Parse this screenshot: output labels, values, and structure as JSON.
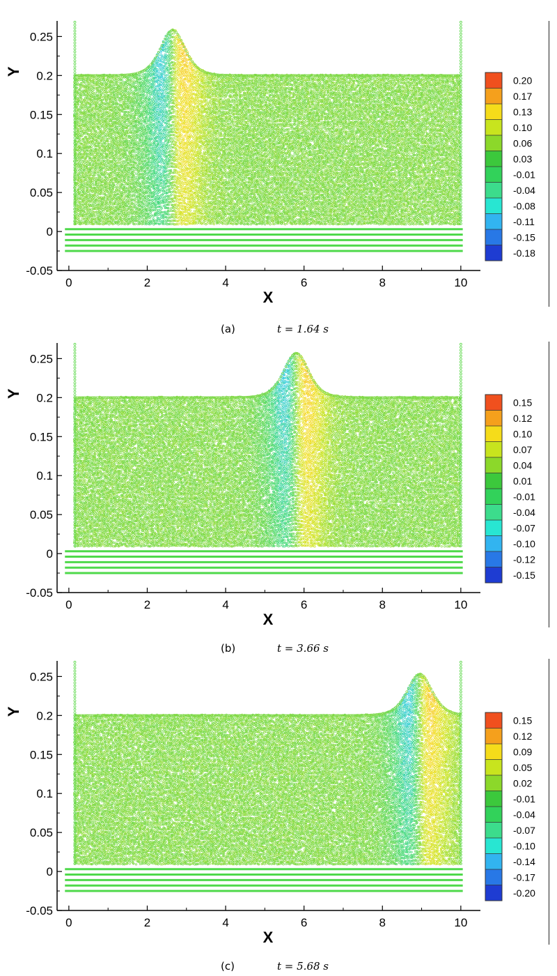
{
  "chart_data": [
    {
      "type": "scatter",
      "subtype": "SPH particle plot with contour legend",
      "panel_label": "(a)",
      "time_label": "t = 1.64 s",
      "xlabel": "X",
      "ylabel": "Y",
      "xlim": [
        -0.3,
        10.5
      ],
      "ylim": [
        -0.05,
        0.27
      ],
      "xticks": [
        0,
        2,
        4,
        6,
        8,
        10
      ],
      "yticks": [
        -0.05,
        0,
        0.05,
        0.1,
        0.15,
        0.2,
        0.25
      ],
      "ytick_labels": [
        "-0.05",
        "0",
        "0.05",
        "0.1",
        "0.15",
        "0.2",
        "0.25"
      ],
      "grid": false,
      "legend_placement": "right",
      "domain": {
        "x_left": 0.1,
        "x_right": 10,
        "water_level": 0.2,
        "bed": 0.01
      },
      "wave": {
        "crest_x": 2.65,
        "crest_y": 0.258,
        "width": 0.42
      },
      "wall_x": [
        0.1,
        10
      ],
      "bed_lines_y": [
        0.003,
        -0.004,
        -0.011,
        -0.018,
        -0.025
      ],
      "legend_levels": [
        "0.20",
        "0.17",
        "0.13",
        "0.10",
        "0.06",
        "0.03",
        "-0.01",
        "-0.04",
        "-0.08",
        "-0.11",
        "-0.15",
        "-0.18"
      ],
      "legend_colors": [
        "#f0501e",
        "#f5a01c",
        "#f5dc1a",
        "#c8e41e",
        "#8cd82a",
        "#3cc83c",
        "#32d25a",
        "#3cdc8c",
        "#28e6d2",
        "#32b4f0",
        "#2878e6",
        "#1e3cd2"
      ]
    },
    {
      "type": "scatter",
      "subtype": "SPH particle plot with contour legend",
      "panel_label": "(b)",
      "time_label": "t = 3.66 s",
      "xlabel": "X",
      "ylabel": "Y",
      "xlim": [
        -0.3,
        10.5
      ],
      "ylim": [
        -0.05,
        0.27
      ],
      "xticks": [
        0,
        2,
        4,
        6,
        8,
        10
      ],
      "yticks": [
        -0.05,
        0,
        0.05,
        0.1,
        0.15,
        0.2,
        0.25
      ],
      "ytick_labels": [
        "-0.05",
        "0",
        "0.05",
        "0.1",
        "0.15",
        "0.2",
        "0.25"
      ],
      "grid": false,
      "legend_placement": "right",
      "domain": {
        "x_left": 0.1,
        "x_right": 10,
        "water_level": 0.2,
        "bed": 0.01
      },
      "wave": {
        "crest_x": 5.8,
        "crest_y": 0.257,
        "width": 0.42
      },
      "wall_x": [
        0.1,
        10
      ],
      "bed_lines_y": [
        0.003,
        -0.004,
        -0.011,
        -0.018,
        -0.025
      ],
      "legend_levels": [
        "0.15",
        "0.12",
        "0.10",
        "0.07",
        "0.04",
        "0.01",
        "-0.01",
        "-0.04",
        "-0.07",
        "-0.10",
        "-0.12",
        "-0.15"
      ],
      "legend_colors": [
        "#f0501e",
        "#f5a01c",
        "#f5dc1a",
        "#c8e41e",
        "#8cd82a",
        "#3cc83c",
        "#32d25a",
        "#3cdc8c",
        "#28e6d2",
        "#32b4f0",
        "#2878e6",
        "#1e3cd2"
      ]
    },
    {
      "type": "scatter",
      "subtype": "SPH particle plot with contour legend",
      "panel_label": "(c)",
      "time_label": "t = 5.68 s",
      "xlabel": "X",
      "ylabel": "Y",
      "xlim": [
        -0.3,
        10.5
      ],
      "ylim": [
        -0.05,
        0.27
      ],
      "xticks": [
        0,
        2,
        4,
        6,
        8,
        10
      ],
      "yticks": [
        -0.05,
        0,
        0.05,
        0.1,
        0.15,
        0.2,
        0.25
      ],
      "ytick_labels": [
        "-0.05",
        "0",
        "0.05",
        "0.1",
        "0.15",
        "0.2",
        "0.25"
      ],
      "grid": false,
      "legend_placement": "right",
      "domain": {
        "x_left": 0.1,
        "x_right": 10,
        "water_level": 0.2,
        "bed": 0.01
      },
      "wave": {
        "crest_x": 8.95,
        "crest_y": 0.253,
        "width": 0.42
      },
      "wall_x": [
        0.1,
        10
      ],
      "bed_lines_y": [
        0.003,
        -0.004,
        -0.011,
        -0.018,
        -0.025
      ],
      "legend_levels": [
        "0.15",
        "0.12",
        "0.09",
        "0.05",
        "0.02",
        "-0.01",
        "-0.04",
        "-0.07",
        "-0.10",
        "-0.14",
        "-0.17",
        "-0.20"
      ],
      "legend_colors": [
        "#f0501e",
        "#f5a01c",
        "#f5dc1a",
        "#c8e41e",
        "#8cd82a",
        "#3cc83c",
        "#32d25a",
        "#3cdc8c",
        "#28e6d2",
        "#32b4f0",
        "#2878e6",
        "#1e3cd2"
      ]
    }
  ]
}
